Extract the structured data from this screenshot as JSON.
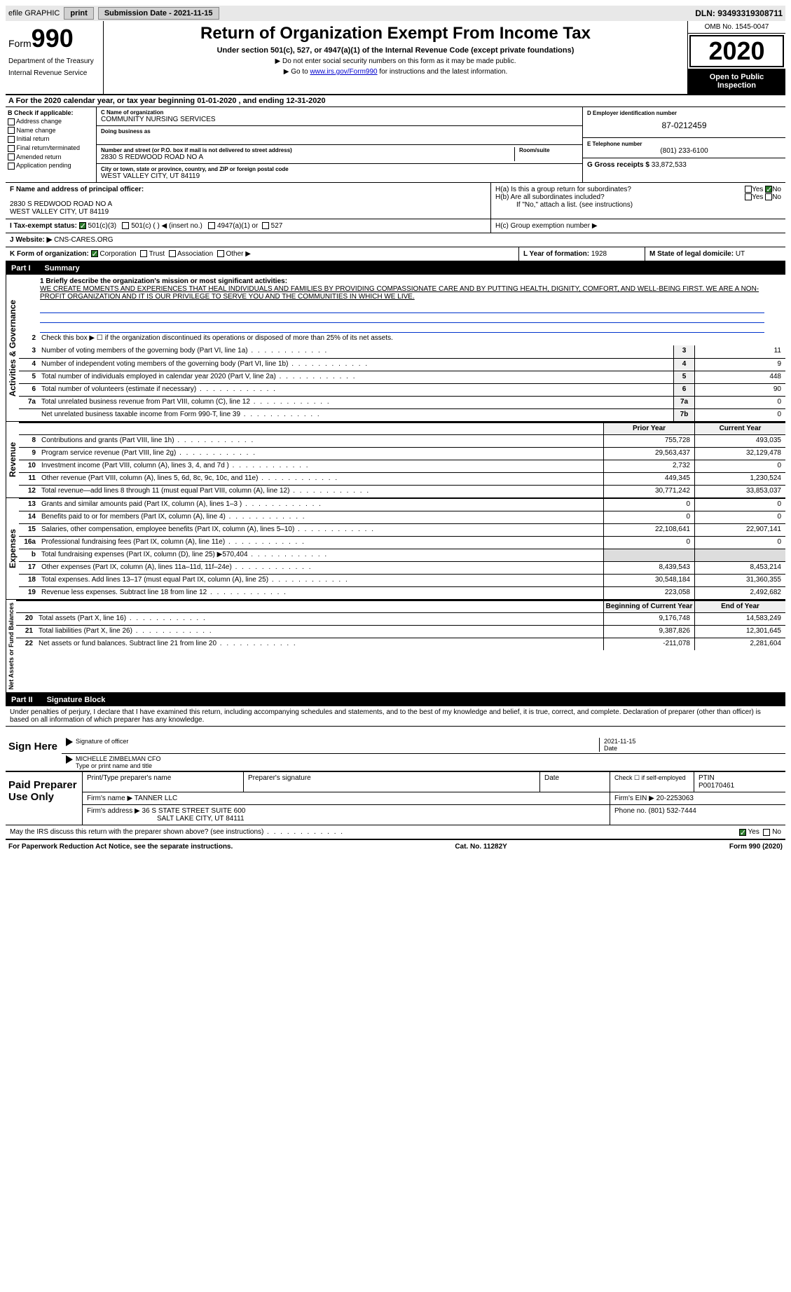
{
  "topbar": {
    "efile": "efile GRAPHIC",
    "print": "print",
    "submission_label": "Submission Date - 2021-11-15",
    "dln": "DLN: 93493319308711"
  },
  "header": {
    "form_label": "Form",
    "form_number": "990",
    "dept1": "Department of the Treasury",
    "dept2": "Internal Revenue Service",
    "title": "Return of Organization Exempt From Income Tax",
    "subtitle": "Under section 501(c), 527, or 4947(a)(1) of the Internal Revenue Code (except private foundations)",
    "note1": "▶ Do not enter social security numbers on this form as it may be made public.",
    "note2_a": "▶ Go to ",
    "note2_link": "www.irs.gov/Form990",
    "note2_b": " for instructions and the latest information.",
    "omb": "OMB No. 1545-0047",
    "year": "2020",
    "open_public": "Open to Public Inspection"
  },
  "section_a": "A For the 2020 calendar year, or tax year beginning 01-01-2020    , and ending 12-31-2020",
  "box_b": {
    "label": "B Check if applicable:",
    "items": [
      "Address change",
      "Name change",
      "Initial return",
      "Final return/terminated",
      "Amended return",
      "Application pending"
    ]
  },
  "box_c": {
    "name_label": "C Name of organization",
    "name": "COMMUNITY NURSING SERVICES",
    "dba_label": "Doing business as",
    "addr_label": "Number and street (or P.O. box if mail is not delivered to street address)",
    "room_label": "Room/suite",
    "address": "2830 S REDWOOD ROAD NO A",
    "city_label": "City or town, state or province, country, and ZIP or foreign postal code",
    "city": "WEST VALLEY CITY, UT  84119"
  },
  "box_d": {
    "label": "D Employer identification number",
    "value": "87-0212459"
  },
  "box_e": {
    "label": "E Telephone number",
    "value": "(801) 233-6100"
  },
  "box_g": {
    "label": "G Gross receipts $",
    "value": "33,872,533"
  },
  "box_f": {
    "label": "F  Name and address of principal officer:",
    "line1": "",
    "addr": "2830 S REDWOOD ROAD NO A",
    "city": "WEST VALLEY CITY, UT  84119"
  },
  "box_h": {
    "a": "H(a)  Is this a group return for subordinates?",
    "b": "H(b)  Are all subordinates included?",
    "b_note": "If \"No,\" attach a list. (see instructions)",
    "c": "H(c)  Group exemption number ▶",
    "yes": "Yes",
    "no": "No"
  },
  "box_i": {
    "label": "I   Tax-exempt status:",
    "opts": [
      "501(c)(3)",
      "501(c) (  ) ◀ (insert no.)",
      "4947(a)(1) or",
      "527"
    ]
  },
  "box_j": {
    "label": "J   Website: ▶",
    "value": " CNS-CARES.ORG"
  },
  "box_k": {
    "label": "K Form of organization:",
    "opts": [
      "Corporation",
      "Trust",
      "Association",
      "Other ▶"
    ]
  },
  "box_l": {
    "label": "L Year of formation:",
    "value": "1928"
  },
  "box_m": {
    "label": "M State of legal domicile:",
    "value": "UT"
  },
  "part1": {
    "num": "Part I",
    "title": "Summary"
  },
  "summary": {
    "line1_label": "1  Briefly describe the organization's mission or most significant activities:",
    "mission": "WE CREATE MOMENTS AND EXPERIENCES THAT HEAL INDIVIDUALS AND FAMILIES BY PROVIDING COMPASSIONATE CARE AND BY PUTTING HEALTH, DIGNITY, COMFORT, AND WELL-BEING FIRST. WE ARE A NON-PROFIT ORGANIZATION AND IT IS OUR PRIVILEGE TO SERVE YOU AND THE COMMUNITIES IN WHICH WE LIVE.",
    "line2": "Check this box ▶ ☐  if the organization discontinued its operations or disposed of more than 25% of its net assets.",
    "lines_single": [
      {
        "n": "3",
        "t": "Number of voting members of the governing body (Part VI, line 1a)",
        "box": "3",
        "v": "11"
      },
      {
        "n": "4",
        "t": "Number of independent voting members of the governing body (Part VI, line 1b)",
        "box": "4",
        "v": "9"
      },
      {
        "n": "5",
        "t": "Total number of individuals employed in calendar year 2020 (Part V, line 2a)",
        "box": "5",
        "v": "448"
      },
      {
        "n": "6",
        "t": "Total number of volunteers (estimate if necessary)",
        "box": "6",
        "v": "90"
      },
      {
        "n": "7a",
        "t": "Total unrelated business revenue from Part VIII, column (C), line 12",
        "box": "7a",
        "v": "0"
      },
      {
        "n": "",
        "t": "Net unrelated business taxable income from Form 990-T, line 39",
        "box": "7b",
        "v": "0"
      }
    ],
    "col_prior": "Prior Year",
    "col_current": "Current Year",
    "revenue": [
      {
        "n": "8",
        "t": "Contributions and grants (Part VIII, line 1h)",
        "p": "755,728",
        "c": "493,035"
      },
      {
        "n": "9",
        "t": "Program service revenue (Part VIII, line 2g)",
        "p": "29,563,437",
        "c": "32,129,478"
      },
      {
        "n": "10",
        "t": "Investment income (Part VIII, column (A), lines 3, 4, and 7d )",
        "p": "2,732",
        "c": "0"
      },
      {
        "n": "11",
        "t": "Other revenue (Part VIII, column (A), lines 5, 6d, 8c, 9c, 10c, and 11e)",
        "p": "449,345",
        "c": "1,230,524"
      },
      {
        "n": "12",
        "t": "Total revenue—add lines 8 through 11 (must equal Part VIII, column (A), line 12)",
        "p": "30,771,242",
        "c": "33,853,037"
      }
    ],
    "expenses": [
      {
        "n": "13",
        "t": "Grants and similar amounts paid (Part IX, column (A), lines 1–3 )",
        "p": "0",
        "c": "0"
      },
      {
        "n": "14",
        "t": "Benefits paid to or for members (Part IX, column (A), line 4)",
        "p": "0",
        "c": "0"
      },
      {
        "n": "15",
        "t": "Salaries, other compensation, employee benefits (Part IX, column (A), lines 5–10)",
        "p": "22,108,641",
        "c": "22,907,141"
      },
      {
        "n": "16a",
        "t": "Professional fundraising fees (Part IX, column (A), line 11e)",
        "p": "0",
        "c": "0"
      },
      {
        "n": "b",
        "t": "Total fundraising expenses (Part IX, column (D), line 25) ▶570,404",
        "p": "",
        "c": ""
      },
      {
        "n": "17",
        "t": "Other expenses (Part IX, column (A), lines 11a–11d, 11f–24e)",
        "p": "8,439,543",
        "c": "8,453,214"
      },
      {
        "n": "18",
        "t": "Total expenses. Add lines 13–17 (must equal Part IX, column (A), line 25)",
        "p": "30,548,184",
        "c": "31,360,355"
      },
      {
        "n": "19",
        "t": "Revenue less expenses. Subtract line 18 from line 12",
        "p": "223,058",
        "c": "2,492,682"
      }
    ],
    "col_begin": "Beginning of Current Year",
    "col_end": "End of Year",
    "netassets": [
      {
        "n": "20",
        "t": "Total assets (Part X, line 16)",
        "p": "9,176,748",
        "c": "14,583,249"
      },
      {
        "n": "21",
        "t": "Total liabilities (Part X, line 26)",
        "p": "9,387,826",
        "c": "12,301,645"
      },
      {
        "n": "22",
        "t": "Net assets or fund balances. Subtract line 21 from line 20",
        "p": "-211,078",
        "c": "2,281,604"
      }
    ],
    "side_ag": "Activities & Governance",
    "side_rev": "Revenue",
    "side_exp": "Expenses",
    "side_na": "Net Assets or Fund Balances"
  },
  "part2": {
    "num": "Part II",
    "title": "Signature Block"
  },
  "sig": {
    "declaration": "Under penalties of perjury, I declare that I have examined this return, including accompanying schedules and statements, and to the best of my knowledge and belief, it is true, correct, and complete. Declaration of preparer (other than officer) is based on all information of which preparer has any knowledge.",
    "sign_here": "Sign Here",
    "sig_officer": "Signature of officer",
    "date": "Date",
    "sig_date": "2021-11-15",
    "name_title": "MICHELLE ZIMBELMAN  CFO",
    "name_label": "Type or print name and title"
  },
  "preparer": {
    "label": "Paid Preparer Use Only",
    "h1": "Print/Type preparer's name",
    "h2": "Preparer's signature",
    "h3": "Date",
    "h4a": "Check ☐  if self-employed",
    "h5": "PTIN",
    "ptin": "P00170461",
    "firm_label": "Firm's name    ▶",
    "firm": "TANNER LLC",
    "ein_label": "Firm's EIN ▶",
    "ein": "20-2253063",
    "addr_label": "Firm's address ▶",
    "addr1": "36 S STATE STREET SUITE 600",
    "addr2": "SALT LAKE CITY, UT  84111",
    "phone_label": "Phone no.",
    "phone": "(801) 532-7444"
  },
  "discuss": {
    "text": "May the IRS discuss this return with the preparer shown above? (see instructions)",
    "yes": "Yes",
    "no": "No"
  },
  "footer": {
    "left": "For Paperwork Reduction Act Notice, see the separate instructions.",
    "mid": "Cat. No. 11282Y",
    "right": "Form 990 (2020)"
  }
}
